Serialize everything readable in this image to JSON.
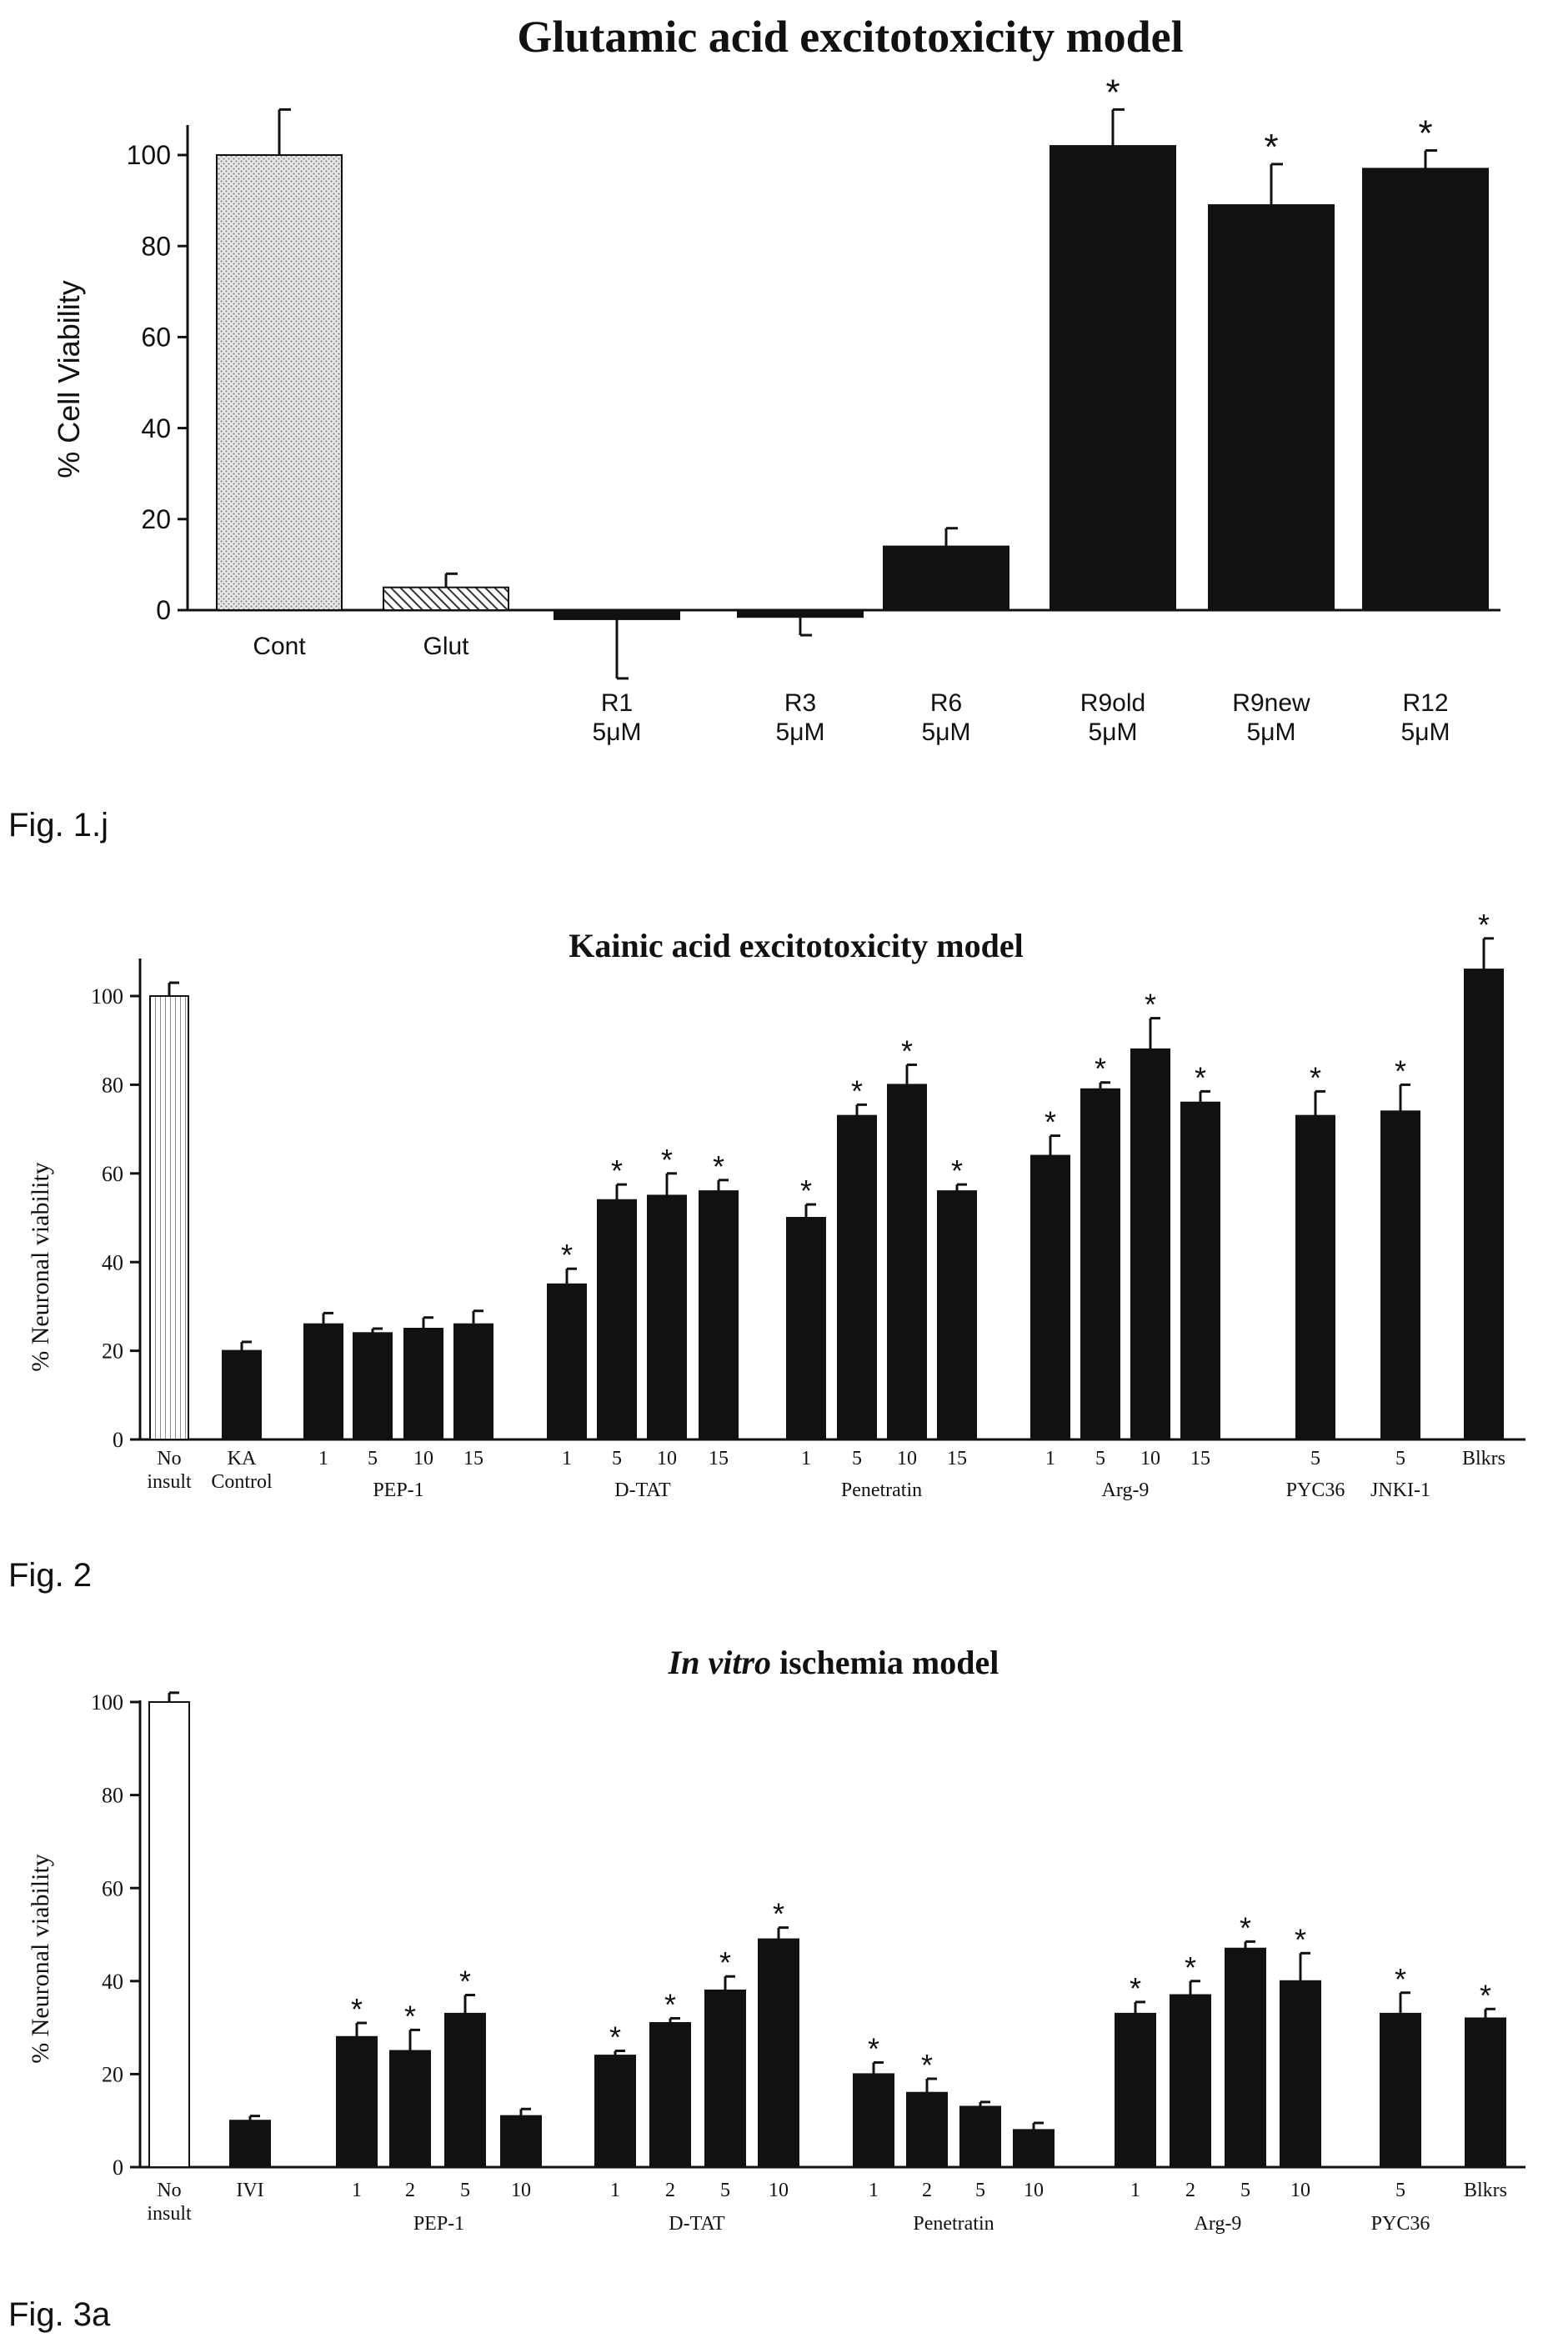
{
  "figures": [
    {
      "label": "Fig. 1.j"
    },
    {
      "label": "Fig. 2"
    },
    {
      "label": "Fig. 3a"
    }
  ],
  "chart_data": [
    {
      "type": "bar",
      "title": "Glutamic acid excitotoxicity model",
      "ylabel": "% Cell Viability",
      "xlabel": "",
      "ylim": [
        0,
        110
      ],
      "yticks": [
        0,
        20,
        40,
        60,
        80,
        100
      ],
      "grid": false,
      "categories": [
        "Cont",
        "Glut",
        "R1 5μM",
        "R3 5μM",
        "R6 5μM",
        "R9old 5μM",
        "R9new 5μM",
        "R12 5μM"
      ],
      "category_lines": [
        [
          "Cont"
        ],
        [
          "Glut"
        ],
        [
          "R1",
          "5μM"
        ],
        [
          "R3",
          "5μM"
        ],
        [
          "R6",
          "5μM"
        ],
        [
          "R9old",
          "5μM"
        ],
        [
          "R9new",
          "5μM"
        ],
        [
          "R12",
          "5μM"
        ]
      ],
      "values": [
        100,
        5,
        -2,
        -1.5,
        14,
        102,
        89,
        97
      ],
      "errors": [
        10,
        3,
        13,
        4,
        4,
        8,
        9,
        4
      ],
      "significant": [
        false,
        false,
        false,
        false,
        false,
        true,
        true,
        true
      ],
      "fills": [
        "dotted",
        "hatched",
        "solid",
        "solid",
        "solid",
        "solid",
        "solid",
        "solid"
      ],
      "marker": "*"
    },
    {
      "type": "bar",
      "title": "Kainic acid excitotoxicity model",
      "ylabel": "% Neuronal viability",
      "xlabel": "",
      "ylim": [
        0,
        115
      ],
      "yticks": [
        0,
        20,
        40,
        60,
        80,
        100
      ],
      "grid": false,
      "categories": [
        "No insult",
        "KA Control",
        "1",
        "5",
        "10",
        "15",
        "1",
        "5",
        "10",
        "15",
        "1",
        "5",
        "10",
        "15",
        "1",
        "5",
        "10",
        "15",
        "5",
        "5",
        "Blkrs"
      ],
      "groups": [
        {
          "name": "PEP-1",
          "from": 2,
          "to": 5
        },
        {
          "name": "D-TAT",
          "from": 6,
          "to": 9
        },
        {
          "name": "Penetratin",
          "from": 10,
          "to": 13
        },
        {
          "name": "Arg-9",
          "from": 14,
          "to": 17
        },
        {
          "name": "PYC36",
          "from": 18,
          "to": 18
        },
        {
          "name": "JNKI-1",
          "from": 19,
          "to": 19
        }
      ],
      "values": [
        100,
        20,
        26,
        24,
        25,
        26,
        35,
        54,
        55,
        56,
        50,
        73,
        80,
        56,
        64,
        79,
        88,
        76,
        73,
        74,
        106
      ],
      "errors": [
        3,
        2,
        2.5,
        1,
        2.5,
        3,
        3.5,
        3.5,
        5,
        2.5,
        3,
        2.5,
        4.5,
        1.5,
        4.5,
        1.5,
        7,
        2.5,
        5.5,
        6,
        7
      ],
      "significant": [
        false,
        false,
        false,
        false,
        false,
        false,
        true,
        true,
        true,
        true,
        true,
        true,
        true,
        true,
        true,
        true,
        true,
        true,
        true,
        true,
        true
      ],
      "fills": [
        "hatched-white"
      ],
      "marker": "*"
    },
    {
      "type": "bar",
      "title_italic": "In vitro",
      "title_rest": " ischemia model",
      "ylabel": "% Neuronal viability",
      "xlabel": "",
      "ylim": [
        0,
        105
      ],
      "yticks": [
        0,
        20,
        40,
        60,
        80,
        100
      ],
      "grid": false,
      "categories": [
        "No insult",
        "IVI",
        "1",
        "2",
        "5",
        "10",
        "1",
        "2",
        "5",
        "10",
        "1",
        "2",
        "5",
        "10",
        "1",
        "2",
        "5",
        "10",
        "5",
        "Blkrs"
      ],
      "groups": [
        {
          "name": "PEP-1",
          "from": 2,
          "to": 5
        },
        {
          "name": "D-TAT",
          "from": 6,
          "to": 9
        },
        {
          "name": "Penetratin",
          "from": 10,
          "to": 13
        },
        {
          "name": "Arg-9",
          "from": 14,
          "to": 17
        },
        {
          "name": "PYC36",
          "from": 18,
          "to": 18
        }
      ],
      "values": [
        100,
        10,
        28,
        25,
        33,
        11,
        24,
        31,
        38,
        49,
        20,
        16,
        13,
        8,
        33,
        37,
        47,
        40,
        33,
        32
      ],
      "errors": [
        2,
        1,
        3,
        4.5,
        4,
        1.5,
        1,
        1,
        3,
        2.5,
        2.5,
        3,
        1,
        1.5,
        2.5,
        3,
        1.5,
        6,
        4.5,
        2
      ],
      "significant": [
        false,
        false,
        true,
        true,
        true,
        false,
        true,
        true,
        true,
        true,
        true,
        true,
        false,
        false,
        true,
        true,
        true,
        true,
        true,
        true
      ],
      "fills": [
        "white"
      ],
      "marker": "*"
    }
  ]
}
